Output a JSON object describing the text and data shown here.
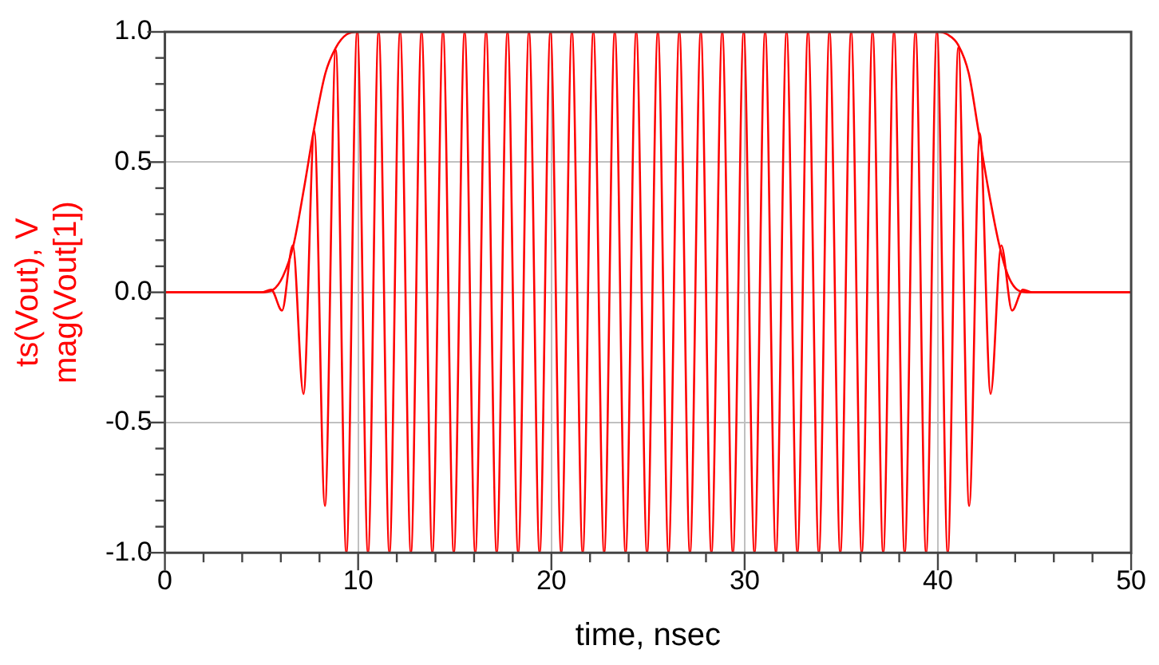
{
  "chart_data": {
    "type": "line",
    "xlabel": "time, nsec",
    "ylabel": "ts(Vout), V\nmag(Vout[1])",
    "xlim": [
      0,
      50
    ],
    "ylim": [
      -1,
      1
    ],
    "xticks": [
      0,
      {
        "value": 2,
        "label": null
      },
      {
        "value": 4,
        "label": null
      },
      {
        "value": 6,
        "label": null
      },
      {
        "value": 8,
        "label": null
      },
      10,
      {
        "value": 12,
        "label": null
      },
      {
        "value": 14,
        "label": null
      },
      {
        "value": 16,
        "label": null
      },
      {
        "value": 18,
        "label": null
      },
      20,
      {
        "value": 22,
        "label": null
      },
      {
        "value": 24,
        "label": null
      },
      {
        "value": 26,
        "label": null
      },
      {
        "value": 28,
        "label": null
      },
      30,
      {
        "value": 32,
        "label": null
      },
      {
        "value": 34,
        "label": null
      },
      {
        "value": 36,
        "label": null
      },
      {
        "value": 38,
        "label": null
      },
      40,
      {
        "value": 42,
        "label": null
      },
      {
        "value": 44,
        "label": null
      },
      {
        "value": 46,
        "label": null
      },
      {
        "value": 48,
        "label": null
      },
      50
    ],
    "yticks": [
      {
        "value": -1,
        "label": "-1.0"
      },
      {
        "value": -0.9,
        "label": null
      },
      {
        "value": -0.8,
        "label": null
      },
      {
        "value": -0.7,
        "label": null
      },
      {
        "value": -0.6,
        "label": null
      },
      {
        "value": -0.5,
        "label": "-0.5"
      },
      {
        "value": -0.4,
        "label": null
      },
      {
        "value": -0.3,
        "label": null
      },
      {
        "value": -0.2,
        "label": null
      },
      {
        "value": -0.1,
        "label": null
      },
      {
        "value": 0,
        "label": "0.0"
      },
      {
        "value": 0.1,
        "label": null
      },
      {
        "value": 0.2,
        "label": null
      },
      {
        "value": 0.3,
        "label": null
      },
      {
        "value": 0.4,
        "label": null
      },
      {
        "value": 0.5,
        "label": "0.5"
      },
      {
        "value": 0.6,
        "label": null
      },
      {
        "value": 0.7,
        "label": null
      },
      {
        "value": 0.8,
        "label": null
      },
      {
        "value": 0.9,
        "label": null
      },
      {
        "value": 1,
        "label": "1.0"
      }
    ],
    "grid": true,
    "legend": false,
    "marker": "none",
    "line_style": "solid",
    "series": [
      {
        "color": "#ff0000",
        "x": [
          0,
          5.0,
          5.5,
          6.06,
          6.62,
          7.17,
          7.73,
          8.28,
          8.84,
          9.39,
          9.95,
          10.51,
          11.06,
          11.62,
          12.17,
          12.73,
          13.28,
          13.84,
          14.39,
          14.95,
          15.51,
          16.06,
          16.62,
          17.17,
          17.73,
          18.28,
          18.84,
          19.39,
          19.95,
          20.51,
          21.06,
          21.62,
          22.17,
          22.73,
          23.28,
          23.84,
          24.39,
          24.95,
          25.51,
          26.06,
          26.62,
          27.17,
          27.73,
          28.28,
          28.84,
          29.39,
          29.95,
          30.51,
          31.06,
          31.62,
          32.17,
          32.73,
          33.28,
          33.84,
          34.39,
          34.95,
          35.51,
          36.06,
          36.62,
          37.17,
          37.73,
          38.28,
          38.84,
          39.39,
          39.95,
          40.51,
          41.06,
          41.62,
          42.17,
          42.73,
          43.28,
          43.84,
          44.4,
          44.9,
          50
        ],
        "values": [
          0,
          0,
          0.01,
          -0.07,
          0.18,
          -0.39,
          0.62,
          -0.82,
          0.93,
          -1,
          1,
          -1,
          1,
          -1,
          1,
          -1,
          1,
          -1,
          1,
          -1,
          1,
          -1,
          1,
          -1,
          1,
          -1,
          1,
          -1,
          1,
          -1,
          1,
          -1,
          1,
          -1,
          1,
          -1,
          1,
          -1,
          1,
          -1,
          1,
          -1,
          1,
          -1,
          1,
          -1,
          1,
          -1,
          1,
          -1,
          1,
          -1,
          1,
          -1,
          1,
          -1,
          1,
          -1,
          1,
          -1,
          1,
          -1,
          1,
          -1,
          1,
          -1,
          0.94,
          -0.82,
          0.61,
          -0.39,
          0.18,
          -0.07,
          0.01,
          0,
          0
        ]
      },
      {
        "color": "#ff0000",
        "x": [
          0,
          5,
          5.6,
          6.1,
          6.65,
          7.2,
          7.7,
          8.3,
          8.85,
          9.4,
          10,
          40,
          40.5,
          41.05,
          41.6,
          42.1,
          42.6,
          43.15,
          43.6,
          44.1,
          44.6,
          50
        ],
        "values": [
          0,
          0,
          0.01,
          0.06,
          0.18,
          0.4,
          0.62,
          0.84,
          0.94,
          0.99,
          1,
          1,
          0.99,
          0.95,
          0.84,
          0.62,
          0.4,
          0.19,
          0.07,
          0.01,
          0,
          0
        ]
      }
    ]
  }
}
